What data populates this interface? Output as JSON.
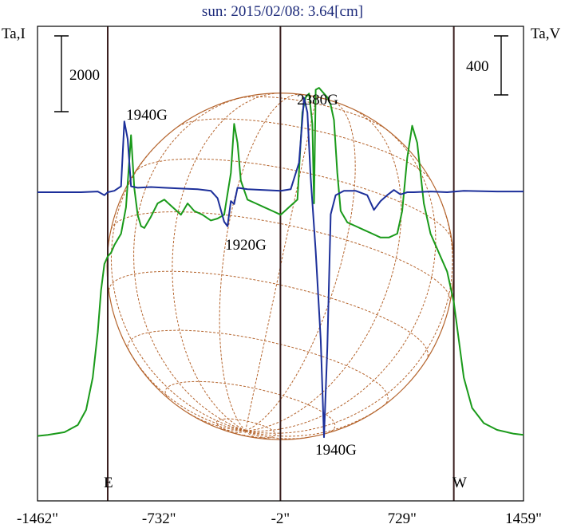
{
  "chart_data": {
    "type": "line",
    "title": "sun: 2015/02/08: 3.64[cm]",
    "left_axis_label": "Ta,I",
    "right_axis_label": "Ta,V",
    "left_scale_bar": "2000",
    "right_scale_bar": "400",
    "x_ticks": [
      "-1462\"",
      "-732\"",
      "-2\"",
      "729\"",
      "1459\""
    ],
    "x_tick_values": [
      -1462,
      -732,
      -2,
      729,
      1459
    ],
    "xlim": [
      -1462,
      1459
    ],
    "limb_lines": [
      -1040,
      -2,
      1040
    ],
    "edge_labels": {
      "east": "E",
      "west": "W"
    },
    "annotations": [
      {
        "text": "1940G",
        "x": -1040,
        "at": "upper-left"
      },
      {
        "text": "1920G",
        "x": -270,
        "at": "below-center"
      },
      {
        "text": "2380G",
        "x": 210,
        "at": "upper"
      },
      {
        "text": "1940G",
        "x": 320,
        "at": "bottom"
      }
    ],
    "series": [
      {
        "name": "Ta,I",
        "color": "#1a9a1a",
        "scale": "left",
        "points": [
          [
            -1462,
            660
          ],
          [
            -1400,
            690
          ],
          [
            -1300,
            760
          ],
          [
            -1220,
            950
          ],
          [
            -1170,
            1350
          ],
          [
            -1130,
            2200
          ],
          [
            -1100,
            3400
          ],
          [
            -1080,
            4500
          ],
          [
            -1060,
            5200
          ],
          [
            -1040,
            5400
          ],
          [
            -1020,
            5500
          ],
          [
            -1000,
            5700
          ],
          [
            -960,
            6000
          ],
          [
            -930,
            6700
          ],
          [
            -900,
            8600
          ],
          [
            -880,
            7200
          ],
          [
            -860,
            6500
          ],
          [
            -840,
            6200
          ],
          [
            -820,
            6150
          ],
          [
            -780,
            6450
          ],
          [
            -740,
            6800
          ],
          [
            -700,
            6900
          ],
          [
            -650,
            6700
          ],
          [
            -600,
            6500
          ],
          [
            -560,
            6800
          ],
          [
            -520,
            6600
          ],
          [
            -470,
            6500
          ],
          [
            -420,
            6350
          ],
          [
            -380,
            6400
          ],
          [
            -340,
            6500
          ],
          [
            -300,
            7600
          ],
          [
            -280,
            8900
          ],
          [
            -260,
            8400
          ],
          [
            -240,
            7400
          ],
          [
            -200,
            6900
          ],
          [
            -150,
            6800
          ],
          [
            -100,
            6700
          ],
          [
            -50,
            6600
          ],
          [
            0,
            6500
          ],
          [
            50,
            6700
          ],
          [
            100,
            6900
          ],
          [
            130,
            9200
          ],
          [
            150,
            9600
          ],
          [
            170,
            9700
          ],
          [
            190,
            8900
          ],
          [
            200,
            6800
          ],
          [
            210,
            9800
          ],
          [
            230,
            9850
          ],
          [
            260,
            9700
          ],
          [
            280,
            9600
          ],
          [
            300,
            9400
          ],
          [
            320,
            9000
          ],
          [
            340,
            7600
          ],
          [
            360,
            6600
          ],
          [
            400,
            6300
          ],
          [
            450,
            6200
          ],
          [
            500,
            6100
          ],
          [
            550,
            6000
          ],
          [
            600,
            5900
          ],
          [
            650,
            5900
          ],
          [
            700,
            6000
          ],
          [
            730,
            6600
          ],
          [
            760,
            8000
          ],
          [
            790,
            8850
          ],
          [
            820,
            8400
          ],
          [
            860,
            6800
          ],
          [
            900,
            6000
          ],
          [
            950,
            5500
          ],
          [
            1000,
            5000
          ],
          [
            1040,
            4200
          ],
          [
            1070,
            3200
          ],
          [
            1100,
            2200
          ],
          [
            1150,
            1400
          ],
          [
            1220,
            1000
          ],
          [
            1300,
            820
          ],
          [
            1400,
            720
          ],
          [
            1459,
            690
          ]
        ]
      },
      {
        "name": "Ta,V",
        "color": "#1c2f9a",
        "scale": "right",
        "points": [
          [
            -1462,
            0
          ],
          [
            -1200,
            0
          ],
          [
            -1100,
            5
          ],
          [
            -1060,
            -20
          ],
          [
            -1040,
            0
          ],
          [
            -1000,
            10
          ],
          [
            -960,
            40
          ],
          [
            -940,
            480
          ],
          [
            -920,
            360
          ],
          [
            -900,
            40
          ],
          [
            -860,
            30
          ],
          [
            -780,
            35
          ],
          [
            -700,
            30
          ],
          [
            -600,
            25
          ],
          [
            -500,
            20
          ],
          [
            -420,
            10
          ],
          [
            -380,
            -40
          ],
          [
            -340,
            -200
          ],
          [
            -320,
            -230
          ],
          [
            -300,
            -60
          ],
          [
            -280,
            -80
          ],
          [
            -260,
            30
          ],
          [
            -200,
            20
          ],
          [
            -100,
            15
          ],
          [
            0,
            10
          ],
          [
            60,
            20
          ],
          [
            110,
            200
          ],
          [
            140,
            640
          ],
          [
            160,
            540
          ],
          [
            180,
            100
          ],
          [
            210,
            -400
          ],
          [
            240,
            -1000
          ],
          [
            260,
            -1660
          ],
          [
            280,
            -1050
          ],
          [
            300,
            -150
          ],
          [
            330,
            -20
          ],
          [
            380,
            10
          ],
          [
            450,
            10
          ],
          [
            520,
            -20
          ],
          [
            560,
            -120
          ],
          [
            600,
            -60
          ],
          [
            640,
            -20
          ],
          [
            680,
            15
          ],
          [
            720,
            -15
          ],
          [
            760,
            0
          ],
          [
            800,
            0
          ],
          [
            900,
            5
          ],
          [
            1000,
            0
          ],
          [
            1100,
            10
          ],
          [
            1300,
            5
          ],
          [
            1459,
            5
          ]
        ]
      }
    ],
    "colors": {
      "title": "#1c2a7a",
      "axes": "#000000",
      "limb_lines": "#3a1f1f",
      "solar_grid": "#b5652e"
    },
    "grid": false
  }
}
